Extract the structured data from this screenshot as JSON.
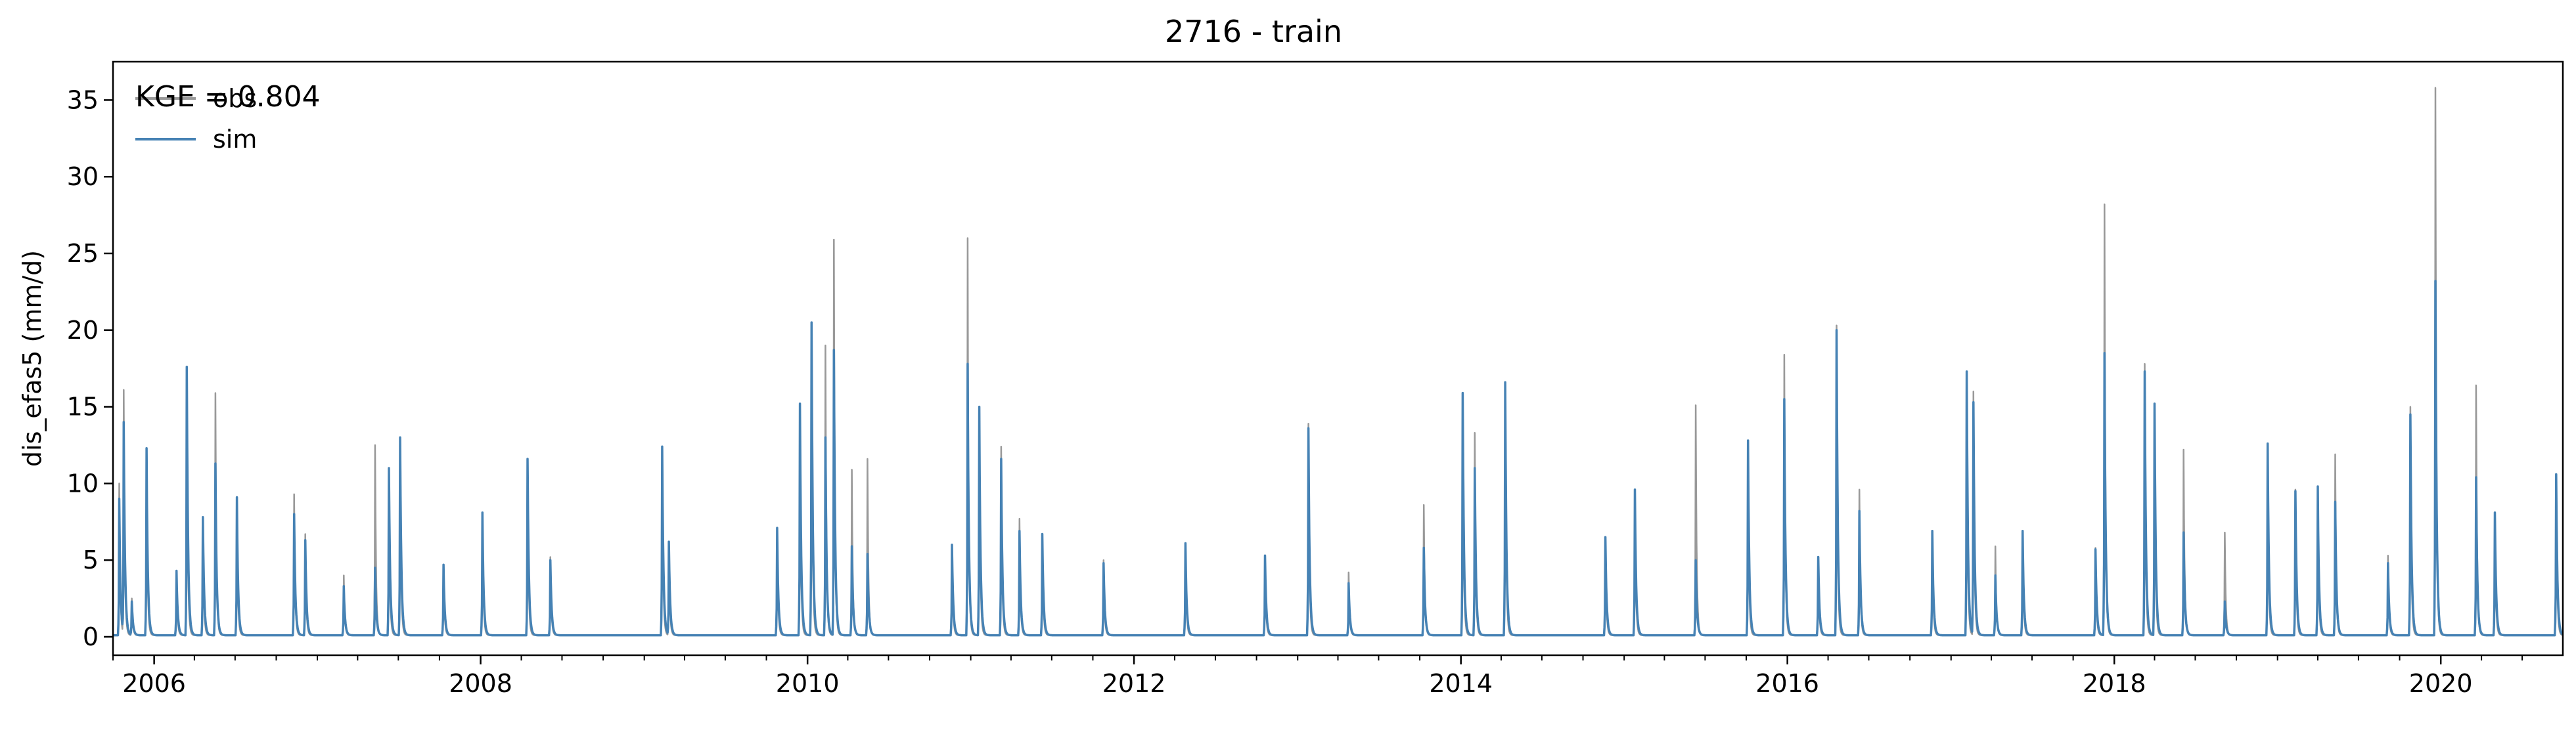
{
  "chart_data": {
    "type": "line",
    "title": "2716 - train",
    "xlabel": "",
    "ylabel": "dis_efas5 (mm/d)",
    "annotation": "KGE = 0.804",
    "x_range": [
      "2005-10-01",
      "2020-09-30"
    ],
    "x_ticks": [
      "2006",
      "2008",
      "2010",
      "2012",
      "2014",
      "2016",
      "2018",
      "2020"
    ],
    "ylim": [
      -1.2,
      37.5
    ],
    "y_ticks": [
      0,
      5,
      10,
      15,
      20,
      25,
      30,
      35
    ],
    "grid": false,
    "legend": {
      "position": "top-left",
      "entries": [
        "obs",
        "sim"
      ]
    },
    "baseline": 0.1,
    "series": [
      {
        "name": "obs",
        "color": "#999999",
        "peaks": [
          [
            "2005-10-15",
            10.0
          ],
          [
            "2005-10-25",
            16.1
          ],
          [
            "2005-11-12",
            2.5
          ],
          [
            "2005-12-15",
            12.3
          ],
          [
            "2006-02-20",
            4.0
          ],
          [
            "2006-03-15",
            17.5
          ],
          [
            "2006-04-20",
            7.5
          ],
          [
            "2006-05-18",
            15.9
          ],
          [
            "2006-07-05",
            9.0
          ],
          [
            "2006-11-10",
            9.3
          ],
          [
            "2006-12-05",
            6.7
          ],
          [
            "2007-03-01",
            4.0
          ],
          [
            "2007-05-10",
            12.5
          ],
          [
            "2007-06-10",
            10.5
          ],
          [
            "2007-07-05",
            12.5
          ],
          [
            "2007-10-10",
            4.7
          ],
          [
            "2008-01-05",
            8.0
          ],
          [
            "2008-04-15",
            11.0
          ],
          [
            "2008-06-05",
            5.2
          ],
          [
            "2009-02-10",
            12.0
          ],
          [
            "2009-02-25",
            6.0
          ],
          [
            "2009-10-25",
            7.0
          ],
          [
            "2009-12-15",
            15.0
          ],
          [
            "2010-01-10",
            20.2
          ],
          [
            "2010-02-10",
            19.0
          ],
          [
            "2010-03-01",
            25.9
          ],
          [
            "2010-04-10",
            10.9
          ],
          [
            "2010-05-15",
            11.6
          ],
          [
            "2010-11-20",
            6.0
          ],
          [
            "2010-12-25",
            26.0
          ],
          [
            "2011-01-20",
            15.0
          ],
          [
            "2011-03-10",
            12.4
          ],
          [
            "2011-04-20",
            7.7
          ],
          [
            "2011-06-10",
            6.7
          ],
          [
            "2011-10-25",
            5.0
          ],
          [
            "2012-04-25",
            6.0
          ],
          [
            "2012-10-20",
            5.2
          ],
          [
            "2013-01-25",
            13.9
          ],
          [
            "2013-04-25",
            4.2
          ],
          [
            "2013-10-10",
            8.6
          ],
          [
            "2014-01-05",
            15.9
          ],
          [
            "2014-02-01",
            13.3
          ],
          [
            "2014-04-10",
            16.6
          ],
          [
            "2014-11-20",
            6.5
          ],
          [
            "2015-01-25",
            9.6
          ],
          [
            "2015-06-10",
            15.1
          ],
          [
            "2015-10-05",
            11.8
          ],
          [
            "2015-12-25",
            18.4
          ],
          [
            "2016-03-10",
            5.0
          ],
          [
            "2016-04-20",
            20.3
          ],
          [
            "2016-06-10",
            9.6
          ],
          [
            "2016-11-20",
            6.7
          ],
          [
            "2017-02-05",
            17.3
          ],
          [
            "2017-02-20",
            16.0
          ],
          [
            "2017-04-10",
            5.9
          ],
          [
            "2017-06-10",
            6.9
          ],
          [
            "2017-11-20",
            5.8
          ],
          [
            "2017-12-10",
            28.2
          ],
          [
            "2018-03-10",
            17.8
          ],
          [
            "2018-04-01",
            15.2
          ],
          [
            "2018-06-05",
            12.2
          ],
          [
            "2018-09-05",
            6.8
          ],
          [
            "2018-12-10",
            12.5
          ],
          [
            "2019-02-10",
            9.6
          ],
          [
            "2019-04-01",
            9.8
          ],
          [
            "2019-05-10",
            11.9
          ],
          [
            "2019-09-05",
            5.3
          ],
          [
            "2019-10-25",
            15.0
          ],
          [
            "2019-12-20",
            35.8
          ],
          [
            "2020-03-20",
            16.4
          ],
          [
            "2020-05-01",
            8.1
          ],
          [
            "2020-09-15",
            10.6
          ]
        ]
      },
      {
        "name": "sim",
        "color": "#4682b4",
        "peaks": [
          [
            "2005-10-15",
            9.0
          ],
          [
            "2005-10-25",
            14.0
          ],
          [
            "2005-11-12",
            2.3
          ],
          [
            "2005-12-15",
            12.3
          ],
          [
            "2006-02-20",
            4.3
          ],
          [
            "2006-03-15",
            17.6
          ],
          [
            "2006-04-20",
            7.8
          ],
          [
            "2006-05-18",
            11.3
          ],
          [
            "2006-07-05",
            9.1
          ],
          [
            "2006-11-10",
            8.0
          ],
          [
            "2006-12-05",
            6.3
          ],
          [
            "2007-03-01",
            3.3
          ],
          [
            "2007-05-10",
            4.5
          ],
          [
            "2007-06-10",
            11.0
          ],
          [
            "2007-07-05",
            13.0
          ],
          [
            "2007-10-10",
            4.7
          ],
          [
            "2008-01-05",
            8.1
          ],
          [
            "2008-04-15",
            11.6
          ],
          [
            "2008-06-05",
            5.0
          ],
          [
            "2009-02-10",
            12.4
          ],
          [
            "2009-02-25",
            6.2
          ],
          [
            "2009-10-25",
            7.1
          ],
          [
            "2009-12-15",
            15.2
          ],
          [
            "2010-01-10",
            20.5
          ],
          [
            "2010-02-10",
            13.0
          ],
          [
            "2010-03-01",
            18.7
          ],
          [
            "2010-04-10",
            5.9
          ],
          [
            "2010-05-15",
            5.4
          ],
          [
            "2010-11-20",
            6.0
          ],
          [
            "2010-12-25",
            17.8
          ],
          [
            "2011-01-20",
            15.0
          ],
          [
            "2011-03-10",
            11.6
          ],
          [
            "2011-04-20",
            6.9
          ],
          [
            "2011-06-10",
            6.7
          ],
          [
            "2011-10-25",
            4.8
          ],
          [
            "2012-04-25",
            6.1
          ],
          [
            "2012-10-20",
            5.3
          ],
          [
            "2013-01-25",
            13.6
          ],
          [
            "2013-04-25",
            3.5
          ],
          [
            "2013-10-10",
            5.8
          ],
          [
            "2014-01-05",
            15.9
          ],
          [
            "2014-02-01",
            11.0
          ],
          [
            "2014-04-10",
            16.6
          ],
          [
            "2014-11-20",
            6.5
          ],
          [
            "2015-01-25",
            9.6
          ],
          [
            "2015-06-10",
            5.0
          ],
          [
            "2015-10-05",
            12.8
          ],
          [
            "2015-12-25",
            15.5
          ],
          [
            "2016-03-10",
            5.2
          ],
          [
            "2016-04-20",
            20.0
          ],
          [
            "2016-06-10",
            8.2
          ],
          [
            "2016-11-20",
            6.9
          ],
          [
            "2017-02-05",
            17.3
          ],
          [
            "2017-02-20",
            15.3
          ],
          [
            "2017-04-10",
            4.0
          ],
          [
            "2017-06-10",
            6.9
          ],
          [
            "2017-11-20",
            5.7
          ],
          [
            "2017-12-10",
            18.5
          ],
          [
            "2018-03-10",
            17.3
          ],
          [
            "2018-04-01",
            15.2
          ],
          [
            "2018-06-05",
            6.8
          ],
          [
            "2018-09-05",
            2.3
          ],
          [
            "2018-12-10",
            12.6
          ],
          [
            "2019-02-10",
            9.5
          ],
          [
            "2019-04-01",
            9.8
          ],
          [
            "2019-05-10",
            8.8
          ],
          [
            "2019-09-05",
            4.8
          ],
          [
            "2019-10-25",
            14.5
          ],
          [
            "2019-12-20",
            23.2
          ],
          [
            "2020-03-20",
            10.4
          ],
          [
            "2020-05-01",
            8.1
          ],
          [
            "2020-09-15",
            10.6
          ]
        ]
      }
    ]
  }
}
